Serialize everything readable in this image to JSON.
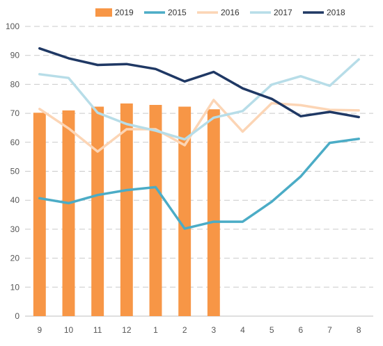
{
  "chart_data": {
    "type": "bar+line",
    "categories": [
      "9",
      "10",
      "11",
      "12",
      "1",
      "2",
      "3",
      "4",
      "5",
      "6",
      "7",
      "8"
    ],
    "ylim": [
      0,
      100
    ],
    "yticks": [
      0,
      10,
      20,
      30,
      40,
      50,
      60,
      70,
      80,
      90,
      100
    ],
    "grid": "horizontal dashed",
    "legend_position": "top",
    "bar_series": {
      "name": "2019",
      "color": "#f79646",
      "values": [
        70.2,
        71.0,
        72.3,
        73.4,
        72.9,
        72.3,
        71.4
      ]
    },
    "line_series": [
      {
        "name": "2015",
        "color": "#4bacc6",
        "values": [
          40.7,
          39.0,
          41.8,
          43.5,
          44.5,
          30.2,
          32.6,
          32.6,
          39.5,
          48.2,
          59.8,
          61.2
        ]
      },
      {
        "name": "2016",
        "color": "#fcd5b5",
        "values": [
          71.5,
          64.8,
          56.8,
          64.5,
          64.5,
          59.0,
          74.6,
          63.7,
          73.5,
          72.8,
          71.2,
          71.0
        ]
      },
      {
        "name": "2017",
        "color": "#b7dde8",
        "values": [
          83.5,
          82.2,
          70.2,
          66.3,
          64.0,
          61.0,
          68.5,
          70.8,
          79.9,
          82.8,
          79.5,
          88.6
        ]
      },
      {
        "name": "2018",
        "color": "#1f3864",
        "values": [
          92.4,
          89.0,
          86.7,
          87.0,
          85.3,
          81.0,
          84.3,
          78.6,
          75.0,
          69.0,
          70.5,
          68.7
        ]
      }
    ],
    "legend_order": [
      "2019",
      "2015",
      "2016",
      "2017",
      "2018"
    ]
  }
}
